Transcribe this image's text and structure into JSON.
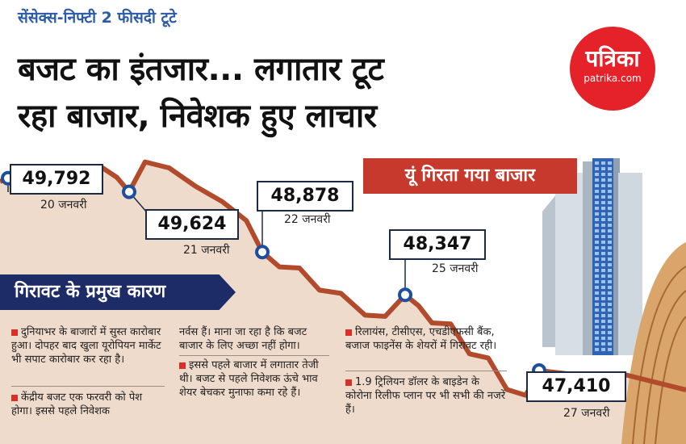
{
  "kicker": "सेंसेक्स-निफ्टी 2 फीसदी टूटे",
  "headline": {
    "line1": "बजट का इंतजार... लगातार टूट",
    "line2": "रहा बाजार, निवेशक हुए लाचार"
  },
  "logo": {
    "hindi": "पत्रिका",
    "english": "patrika.com"
  },
  "banner": "यूं गिरता गया बाजार",
  "reasons_title": "गिरावट के प्रमुख कारण",
  "colors": {
    "accent_red": "#d63028",
    "line_brown": "#b24a2c",
    "area_fill": "#efdbcc",
    "marker_blue": "#1d4f9c",
    "navy": "#1d2b66",
    "kicker_blue": "#2b5aa8"
  },
  "chart_data": {
    "type": "line",
    "title": "यूं गिरता गया बाजार",
    "x": [
      "20 जनवरी",
      "21 जनवरी",
      "22 जनवरी",
      "25 जनवरी",
      "27 जनवरी"
    ],
    "series": [
      {
        "name": "सेंसेक्स",
        "values": [
          49792,
          49624,
          48878,
          48347,
          47410
        ]
      }
    ],
    "value_labels": [
      "49,792",
      "49,624",
      "48,878",
      "48,347",
      "47,410"
    ],
    "ylim": [
      47000,
      50200
    ],
    "xlabel": "",
    "ylabel": "",
    "grid": false
  },
  "reasons": {
    "col1": [
      {
        "bullet": true,
        "text": "दुनियाभर के बाजारों में सुस्त कारोबार हुआ। दोपहर बाद खुला यूरोपियन मार्केट भी सपाट कारोबार कर रहा है।"
      },
      {
        "bullet": true,
        "text": "केंद्रीय बजट एक फरवरी को पेश होगा। इससे पहले निवेशक"
      }
    ],
    "col2": [
      {
        "bullet": false,
        "text": "नर्वस हैं। माना जा रहा है कि बजट बाजार के लिए अच्छा नहीं होगा।"
      },
      {
        "bullet": true,
        "text": "इससे पहले बाजार में लगातार तेजी थी। बजट से पहले निवेशक ऊंचे भाव शेयर बेचकर मुनाफा कमा रहे हैं।"
      }
    ],
    "col3": [
      {
        "bullet": true,
        "text": "रिलायंस, टीसीएस, एचडीएफसी बैंक, बजाज फाइनेंस के शेयरों में गिरावट रही।"
      },
      {
        "bullet": true,
        "text": "1.9 ट्रिलियन डॉलर के बाइडेन के कोरोना रिलीफ प्लान पर भी सभी की नजरें हैं।"
      }
    ]
  }
}
